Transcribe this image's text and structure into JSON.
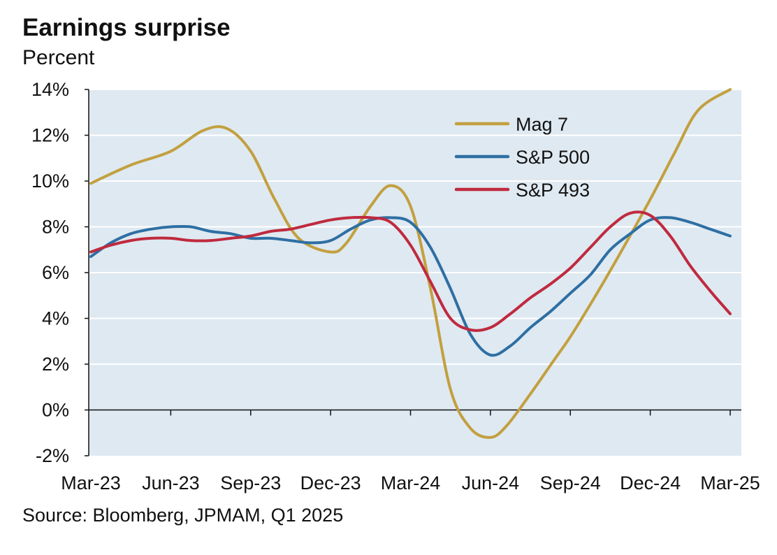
{
  "title": "Earnings surprise",
  "subtitle": "Percent",
  "source": "Source: Bloomberg, JPMAM, Q1 2025",
  "colors": {
    "plot_background": "#dfe9f1",
    "grid": "#ffffff",
    "axis": "#111111",
    "mag7": "#c2a040",
    "sp500": "#2e6fa3",
    "sp493": "#bf2a3f"
  },
  "chart_data": {
    "type": "line",
    "title": "Earnings surprise",
    "ylabel": "Percent",
    "xlabel": "",
    "ylim": [
      -2,
      14
    ],
    "yticks": [
      -2,
      0,
      2,
      4,
      6,
      8,
      10,
      12,
      14
    ],
    "ytick_labels": [
      "-2%",
      "0%",
      "2%",
      "4%",
      "6%",
      "8%",
      "10%",
      "12%",
      "14%"
    ],
    "x_labels": [
      "Mar-23",
      "Jun-23",
      "Sep-23",
      "Dec-23",
      "Mar-24",
      "Jun-24",
      "Sep-24",
      "Dec-24",
      "Mar-25"
    ],
    "legend_position": "top-center",
    "series": [
      {
        "name": "Mag 7",
        "color_key": "mag7",
        "x": [
          0,
          0.5,
          1,
          1.4,
          1.7,
          2,
          2.3,
          2.6,
          3,
          3.2,
          3.5,
          3.75,
          4,
          4.25,
          4.5,
          4.75,
          5,
          5.2,
          5.5,
          5.8,
          6,
          6.3,
          6.6,
          7,
          7.3,
          7.6,
          8
        ],
        "values": [
          9.9,
          10.7,
          11.3,
          12.2,
          12.3,
          11.3,
          9.2,
          7.5,
          6.9,
          7.3,
          8.9,
          9.8,
          8.9,
          5.3,
          0.9,
          -0.8,
          -1.2,
          -0.7,
          0.7,
          2.2,
          3.2,
          4.9,
          6.7,
          9.2,
          11.2,
          13.1,
          14.0
        ]
      },
      {
        "name": "S&P 500",
        "color_key": "sp500",
        "x": [
          0,
          0.25,
          0.5,
          0.75,
          1,
          1.25,
          1.5,
          1.75,
          2,
          2.25,
          2.5,
          2.75,
          3,
          3.25,
          3.5,
          3.75,
          4,
          4.25,
          4.5,
          4.75,
          5,
          5.25,
          5.5,
          5.75,
          6,
          6.25,
          6.5,
          6.75,
          7,
          7.25,
          7.5,
          7.75,
          8
        ],
        "values": [
          6.7,
          7.3,
          7.7,
          7.9,
          8.0,
          8.0,
          7.8,
          7.7,
          7.5,
          7.5,
          7.4,
          7.3,
          7.4,
          7.9,
          8.3,
          8.4,
          8.2,
          7.1,
          5.3,
          3.3,
          2.4,
          2.8,
          3.6,
          4.3,
          5.1,
          5.9,
          7.0,
          7.7,
          8.3,
          8.4,
          8.2,
          7.9,
          7.6
        ]
      },
      {
        "name": "S&P 493",
        "color_key": "sp493",
        "x": [
          0,
          0.25,
          0.5,
          0.75,
          1,
          1.25,
          1.5,
          1.75,
          2,
          2.25,
          2.5,
          2.75,
          3,
          3.25,
          3.5,
          3.75,
          4,
          4.25,
          4.5,
          4.75,
          5,
          5.25,
          5.5,
          5.75,
          6,
          6.25,
          6.5,
          6.75,
          7,
          7.25,
          7.5,
          7.75,
          8
        ],
        "values": [
          6.9,
          7.2,
          7.4,
          7.5,
          7.5,
          7.4,
          7.4,
          7.5,
          7.6,
          7.8,
          7.9,
          8.1,
          8.3,
          8.4,
          8.4,
          8.2,
          7.2,
          5.6,
          4.0,
          3.5,
          3.6,
          4.2,
          4.9,
          5.5,
          6.2,
          7.1,
          8.0,
          8.6,
          8.5,
          7.6,
          6.3,
          5.2,
          4.2
        ]
      }
    ]
  }
}
